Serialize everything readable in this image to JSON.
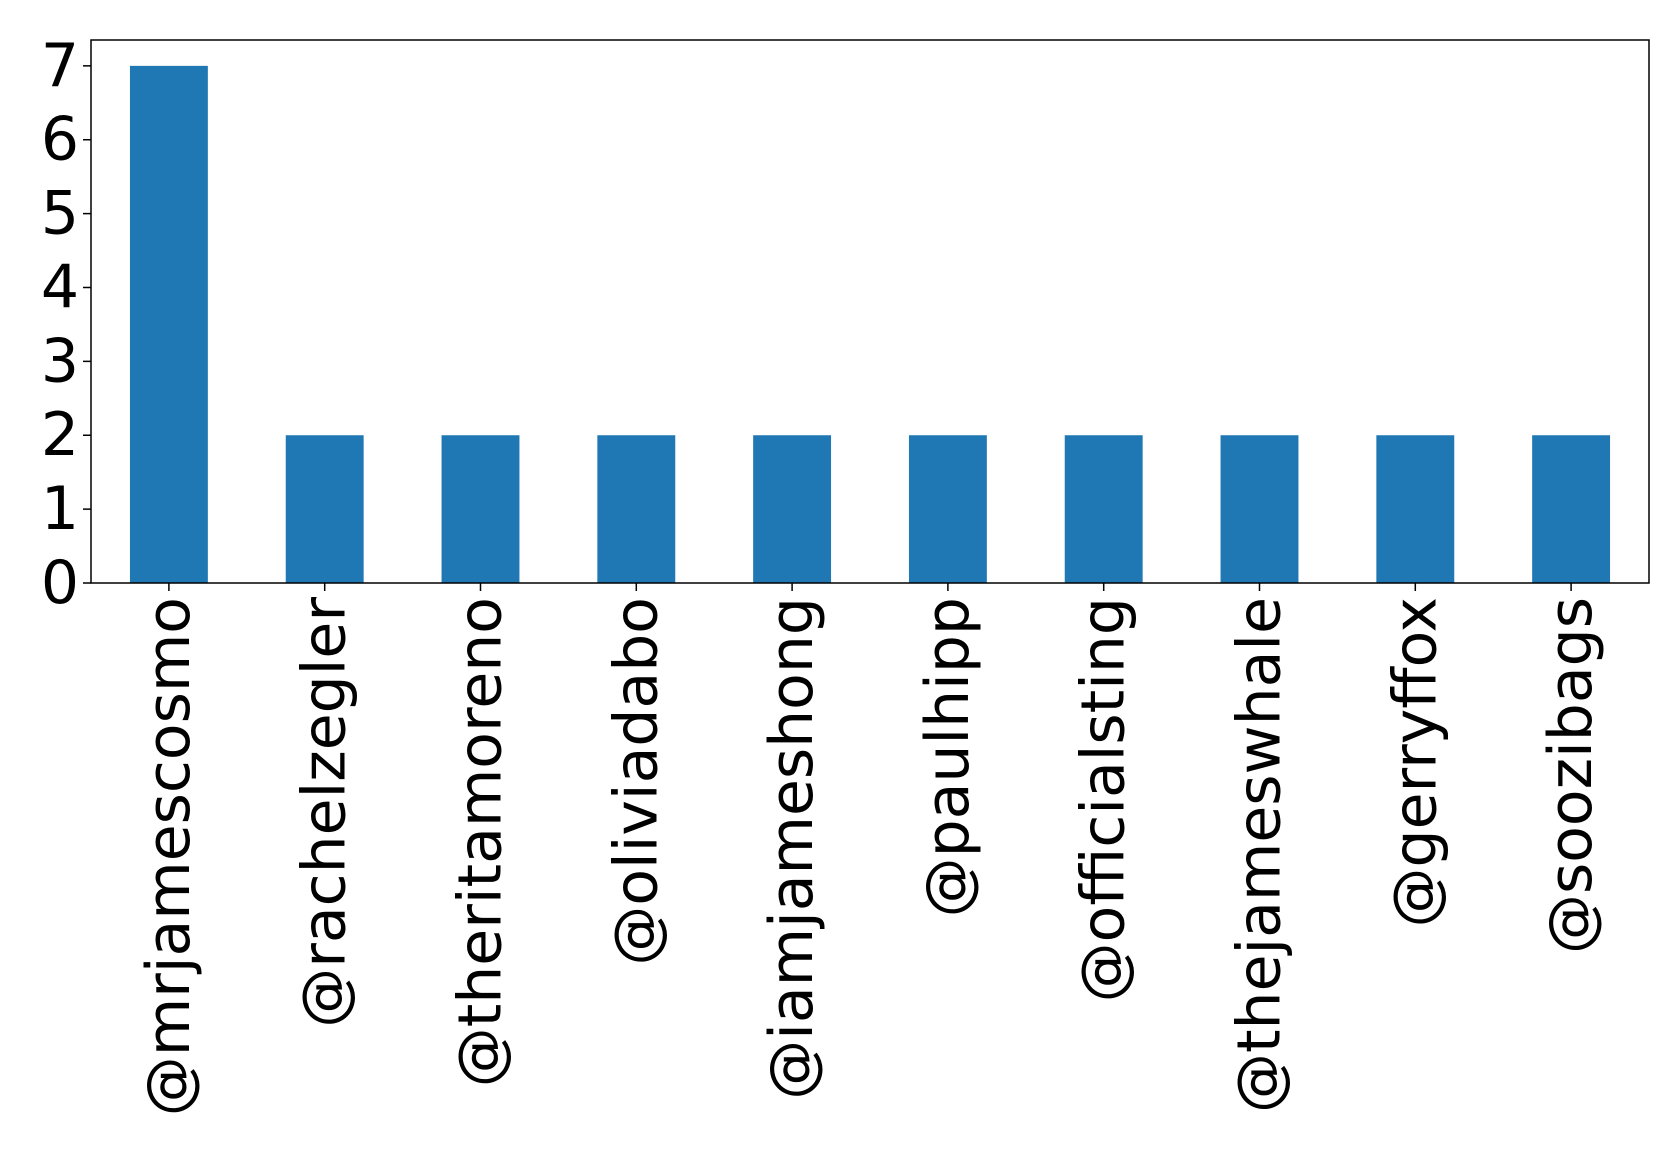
{
  "chart_data": {
    "type": "bar",
    "title": "",
    "xlabel": "",
    "ylabel": "",
    "categories": [
      "@mrjamescosmo",
      "@rachelzegler",
      "@theritamoreno",
      "@oliviadabo",
      "@iamjameshong",
      "@paulhipp",
      "@officialsting",
      "@thejameswhale",
      "@gerryffox",
      "@soozibags"
    ],
    "values": [
      7,
      2,
      2,
      2,
      2,
      2,
      2,
      2,
      2,
      2
    ],
    "ylim": [
      0,
      7.35
    ],
    "yticks": [
      0,
      1,
      2,
      3,
      4,
      5,
      6,
      7
    ],
    "grid": false,
    "bar_color": "#1f77b4"
  }
}
